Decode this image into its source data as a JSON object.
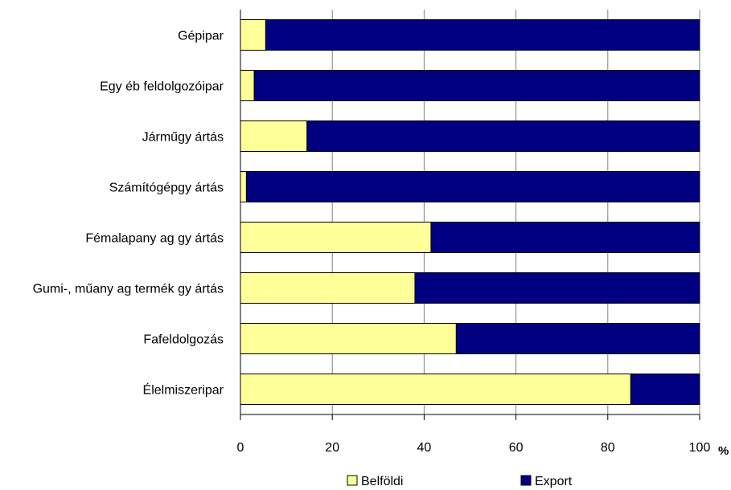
{
  "chart_data": {
    "type": "bar",
    "orientation": "horizontal",
    "stacked": true,
    "categories": [
      "Gépipar",
      "Egy éb feldolgozóipar",
      "Járműgy ártás",
      "Számítógépgy ártás",
      "Fémalapany ag gy ártás",
      "Gumi-, műany ag termék gy ártás",
      "Fafeldolgozás",
      "Élelmiszeripar"
    ],
    "series": [
      {
        "name": "Belföldi",
        "values": [
          5.5,
          3.0,
          14.5,
          1.3,
          41.5,
          38.0,
          47.0,
          85.0
        ]
      },
      {
        "name": "Export",
        "values": [
          94.5,
          97.0,
          85.5,
          98.7,
          58.5,
          62.0,
          53.0,
          15.0
        ]
      }
    ],
    "xlim": [
      0,
      100
    ],
    "xticks": [
      "0",
      "20",
      "40",
      "60",
      "80",
      "100"
    ],
    "xunit": "%",
    "grid": "vertical",
    "legend_position": "bottom"
  },
  "colors": {
    "Belföldi": "#ffff99",
    "Export": "#000080",
    "grid": "#808080"
  }
}
